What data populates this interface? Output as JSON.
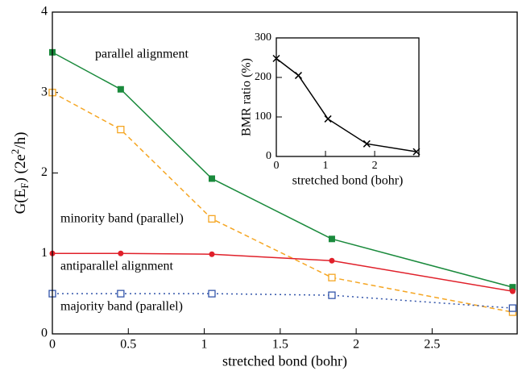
{
  "chart_data": [
    {
      "type": "line",
      "xlabel": "stretched bond (bohr)",
      "ylabel_parts": [
        "G(E",
        "F",
        ") (2e",
        "2",
        "/h)"
      ],
      "x": [
        0,
        0.45,
        1.05,
        1.84,
        3.03
      ],
      "xlim": [
        0,
        3.06
      ],
      "xticks": [
        0,
        0.5,
        1,
        1.5,
        2,
        2.5
      ],
      "ylim": [
        0,
        4
      ],
      "yticks": [
        0,
        1,
        2,
        3,
        4
      ],
      "series": [
        {
          "name": "parallel alignment",
          "color": "#1a8a3c",
          "style": "solid",
          "marker": "filled-square",
          "values": [
            3.5,
            3.04,
            1.93,
            1.18,
            0.58
          ]
        },
        {
          "name": "minority band (parallel)",
          "color": "#f5a623",
          "style": "dashed",
          "marker": "open-square",
          "values": [
            3.0,
            2.54,
            1.43,
            0.7,
            0.27
          ]
        },
        {
          "name": "antiparallel alignment",
          "color": "#e0202a",
          "style": "solid",
          "marker": "circle",
          "values": [
            1.0,
            1.0,
            0.99,
            0.91,
            0.53
          ]
        },
        {
          "name": "majority band (parallel)",
          "color": "#3355aa",
          "style": "dotted",
          "marker": "open-square",
          "values": [
            0.5,
            0.5,
            0.5,
            0.48,
            0.32
          ]
        }
      ]
    },
    {
      "type": "line",
      "xlabel": "stretched bond (bohr)",
      "ylabel": "BMR ratio (%)",
      "x": [
        0,
        0.45,
        1.05,
        1.84,
        2.85
      ],
      "xlim": [
        0,
        2.9
      ],
      "xticks": [
        0,
        1,
        2
      ],
      "ylim": [
        0,
        300
      ],
      "yticks": [
        0,
        100,
        200,
        300
      ],
      "series": [
        {
          "color": "#000000",
          "style": "solid",
          "marker": "cross",
          "values": [
            248,
            205,
            95,
            32,
            12
          ]
        }
      ]
    }
  ]
}
